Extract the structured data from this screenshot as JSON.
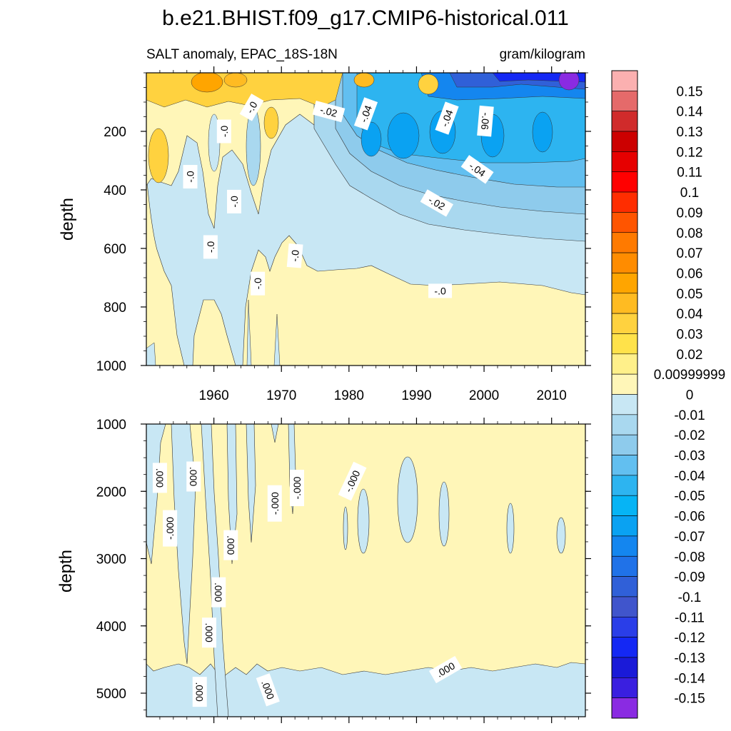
{
  "title": "b.e21.BHIST.f09_g17.CMIP6-historical.011",
  "chart_data": {
    "type": "contour",
    "variable_label": "SALT anomaly, EPAC_18S-18N",
    "units_label": "gram/kilogram",
    "xlabel": "",
    "ylabel": "depth",
    "xlim": [
      1950,
      2015
    ],
    "x_ticks": [
      1960,
      1970,
      1980,
      1990,
      2000,
      2010
    ],
    "upper_panel": {
      "ylim": [
        0,
        1000
      ],
      "y_ticks": [
        200,
        400,
        600,
        800,
        1000
      ],
      "contour_labels": [
        {
          "text": "-.0",
          "x": 1965.6,
          "y": 118,
          "rot": -60
        },
        {
          "text": "-.02",
          "x": 1977.0,
          "y": 132,
          "rot": 15
        },
        {
          "text": "-.04",
          "x": 1982.5,
          "y": 140,
          "rot": -70
        },
        {
          "text": "-.04",
          "x": 1994.5,
          "y": 155,
          "rot": -70
        },
        {
          "text": "-.06",
          "x": 2000.2,
          "y": 165,
          "rot": 95
        },
        {
          "text": "-.04",
          "x": 1999.0,
          "y": 330,
          "rot": 35
        },
        {
          "text": "-.02",
          "x": 1993.0,
          "y": 445,
          "rot": 30
        },
        {
          "text": "-.0",
          "x": 1961.5,
          "y": 200,
          "rot": -90
        },
        {
          "text": "-.0",
          "x": 1956.5,
          "y": 355,
          "rot": -90
        },
        {
          "text": "-.0",
          "x": 1963.0,
          "y": 440,
          "rot": -90
        },
        {
          "text": "-.0",
          "x": 1959.5,
          "y": 595,
          "rot": -90
        },
        {
          "text": "-.0",
          "x": 1972.0,
          "y": 625,
          "rot": -85
        },
        {
          "text": "-.0",
          "x": 1966.5,
          "y": 720,
          "rot": -90
        },
        {
          "text": "-.0",
          "x": 1993.5,
          "y": 745,
          "rot": 0
        }
      ]
    },
    "lower_panel": {
      "ylim": [
        1000,
        5350
      ],
      "y_ticks": [
        1000,
        2000,
        3000,
        4000,
        5000
      ],
      "contour_labels": [
        {
          "text": ".000",
          "x": 1957.0,
          "y": 1780,
          "rot": 90
        },
        {
          "text": "-.000",
          "x": 1953.5,
          "y": 2550,
          "rot": -90
        },
        {
          "text": "-.000",
          "x": 1969.0,
          "y": 2180,
          "rot": -90
        },
        {
          "text": ".000",
          "x": 1962.5,
          "y": 2800,
          "rot": 90
        },
        {
          "text": "-.000",
          "x": 1972.3,
          "y": 1950,
          "rot": -90
        },
        {
          "text": ".000",
          "x": 1952.0,
          "y": 1800,
          "rot": 90
        },
        {
          "text": "-.000",
          "x": 1980.5,
          "y": 1850,
          "rot": -65
        },
        {
          "text": ".000",
          "x": 1960.7,
          "y": 3500,
          "rot": 90
        },
        {
          "text": ".000",
          "x": 1959.3,
          "y": 4100,
          "rot": 90
        },
        {
          "text": ".000",
          "x": 1957.9,
          "y": 4980,
          "rot": 90
        },
        {
          "text": ".000",
          "x": 1968.0,
          "y": 4950,
          "rot": 70
        },
        {
          "text": ".000",
          "x": 1994.3,
          "y": 4650,
          "rot": -30
        }
      ]
    },
    "colorbar": {
      "labels": [
        "0.15",
        "0.14",
        "0.13",
        "0.12",
        "0.11",
        "0.1",
        "0.09",
        "0.08",
        "0.07",
        "0.06",
        "0.05",
        "0.04",
        "0.03",
        "0.02",
        "0.00999999",
        "0",
        "-0.01",
        "-0.02",
        "-0.03",
        "-0.04",
        "-0.05",
        "-0.06",
        "-0.07",
        "-0.08",
        "-0.09",
        "-0.1",
        "-0.11",
        "-0.12",
        "-0.13",
        "-0.14",
        "-0.15"
      ],
      "colors": [
        "#fbb0b0",
        "#e56a6a",
        "#d02b2b",
        "#cc0000",
        "#e60000",
        "#ff0000",
        "#ff2d00",
        "#ff5500",
        "#ff7a00",
        "#ff8c00",
        "#ffa500",
        "#ffbb22",
        "#ffd23f",
        "#ffe24a",
        "#fff08a",
        "#fff6b8",
        "#c8e7f4",
        "#a9d8ef",
        "#8ecbec",
        "#62bff0",
        "#2db4f0",
        "#06b4f5",
        "#0aa2f2",
        "#1486ef",
        "#2072e8",
        "#3060d8",
        "#4055cc",
        "#2a3ee8",
        "#1428f4",
        "#1a1ad8",
        "#3a1fe0",
        "#8a2be2"
      ]
    }
  }
}
